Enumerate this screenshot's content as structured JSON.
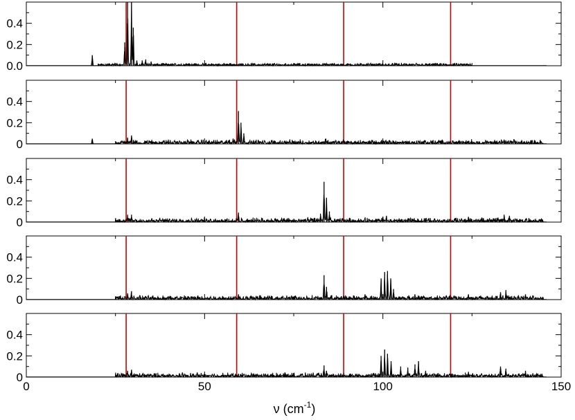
{
  "chart_data": {
    "type": "line",
    "xlabel": {
      "base": "ν (cm",
      "sup": "-1",
      "close": ")"
    },
    "xlim": [
      0,
      150
    ],
    "x_ticks": [
      "0",
      "50",
      "100",
      "150"
    ],
    "x_tick_values": [
      0,
      50,
      100,
      150
    ],
    "grid": false,
    "reference_lines": {
      "color": "#cc0000",
      "x": [
        28,
        59,
        89,
        119
      ]
    },
    "series_color": "#000000",
    "panels": [
      {
        "y_ticks": [
          "0.0",
          "0.2",
          "0.4"
        ],
        "y_tick_values": [
          0,
          0.2,
          0.4
        ],
        "ylim": [
          0,
          0.6
        ],
        "peaks": [
          [
            18.5,
            0.1
          ],
          [
            27.6,
            0.22
          ],
          [
            28.4,
            0.6
          ],
          [
            29.5,
            0.6
          ],
          [
            30.0,
            0.36
          ],
          [
            31,
            0.05
          ],
          [
            32.5,
            0.05
          ],
          [
            33.5,
            0.06
          ],
          [
            35,
            0.04
          ],
          [
            41,
            0.02
          ],
          [
            45,
            0.02
          ],
          [
            50,
            0.02
          ],
          [
            55,
            0.015
          ],
          [
            58,
            0.015
          ]
        ],
        "noise_range": [
          20,
          125
        ],
        "noise_level": 0.012
      },
      {
        "y_ticks": [
          "0",
          "0.2",
          "0.4"
        ],
        "y_tick_values": [
          0,
          0.2,
          0.4
        ],
        "ylim": [
          0,
          0.6
        ],
        "peaks": [
          [
            18.5,
            0.05
          ],
          [
            28.4,
            0.06
          ],
          [
            29.5,
            0.08
          ],
          [
            57,
            0.04
          ],
          [
            58,
            0.05
          ],
          [
            59.5,
            0.31
          ],
          [
            60.2,
            0.2
          ],
          [
            61,
            0.1
          ],
          [
            84,
            0.05
          ],
          [
            100,
            0.03
          ],
          [
            124,
            0.03
          ],
          [
            132,
            0.03
          ],
          [
            134,
            0.04
          ],
          [
            136,
            0.03
          ]
        ],
        "noise_range": [
          25,
          145
        ],
        "noise_level": 0.02
      },
      {
        "y_ticks": [
          "0",
          "0.2",
          "0.4"
        ],
        "y_tick_values": [
          0,
          0.2,
          0.4
        ],
        "ylim": [
          0,
          0.6
        ],
        "peaks": [
          [
            28.4,
            0.07
          ],
          [
            29.5,
            0.07
          ],
          [
            59.5,
            0.09
          ],
          [
            82.5,
            0.08
          ],
          [
            83.5,
            0.38
          ],
          [
            84.2,
            0.23
          ],
          [
            85,
            0.1
          ],
          [
            100,
            0.05
          ],
          [
            101,
            0.06
          ],
          [
            124,
            0.05
          ],
          [
            132,
            0.04
          ],
          [
            134,
            0.07
          ],
          [
            135.5,
            0.06
          ],
          [
            140,
            0.03
          ]
        ],
        "noise_range": [
          25,
          145
        ],
        "noise_level": 0.02
      },
      {
        "y_ticks": [
          "0",
          "0.2",
          "0.4"
        ],
        "y_tick_values": [
          0,
          0.2,
          0.4
        ],
        "ylim": [
          0,
          0.6
        ],
        "peaks": [
          [
            28.4,
            0.06
          ],
          [
            29.5,
            0.08
          ],
          [
            59.5,
            0.05
          ],
          [
            83.5,
            0.23
          ],
          [
            84.2,
            0.12
          ],
          [
            95,
            0.05
          ],
          [
            99.5,
            0.2
          ],
          [
            100.5,
            0.26
          ],
          [
            101.3,
            0.27
          ],
          [
            102.2,
            0.2
          ],
          [
            103,
            0.1
          ],
          [
            109,
            0.05
          ],
          [
            124,
            0.05
          ],
          [
            133,
            0.07
          ],
          [
            134.5,
            0.09
          ],
          [
            140,
            0.05
          ]
        ],
        "noise_range": [
          25,
          145
        ],
        "noise_level": 0.02
      },
      {
        "y_ticks": [
          "0",
          "0.2",
          "0.4"
        ],
        "y_tick_values": [
          0,
          0.2,
          0.4
        ],
        "ylim": [
          0,
          0.6
        ],
        "peaks": [
          [
            28.4,
            0.06
          ],
          [
            29.5,
            0.07
          ],
          [
            83.5,
            0.11
          ],
          [
            84.2,
            0.06
          ],
          [
            93,
            0.03
          ],
          [
            99.5,
            0.2
          ],
          [
            100.5,
            0.26
          ],
          [
            101.3,
            0.22
          ],
          [
            102.3,
            0.15
          ],
          [
            105,
            0.1
          ],
          [
            107,
            0.09
          ],
          [
            109,
            0.12
          ],
          [
            110,
            0.15
          ],
          [
            112,
            0.06
          ],
          [
            124,
            0.05
          ],
          [
            133,
            0.1
          ],
          [
            134.5,
            0.08
          ],
          [
            140,
            0.06
          ]
        ],
        "noise_range": [
          25,
          145
        ],
        "noise_level": 0.02
      }
    ]
  }
}
